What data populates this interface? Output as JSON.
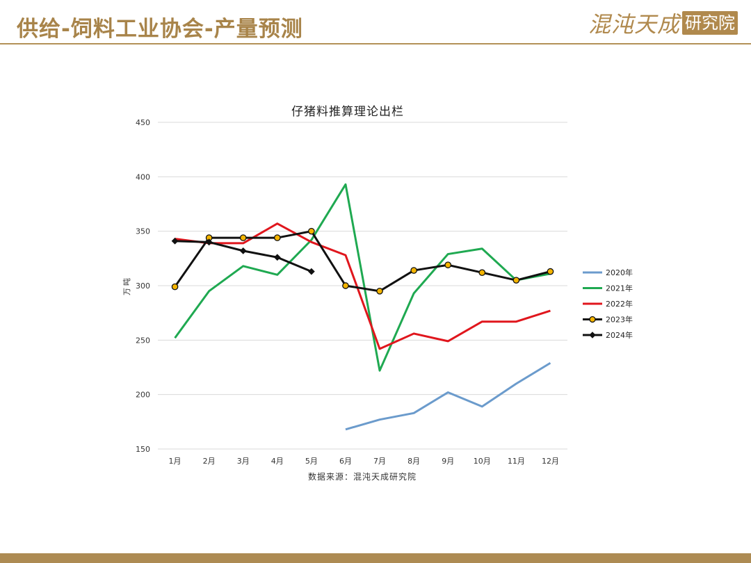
{
  "header": {
    "title": "供给-饲料工业协会-产量预测",
    "logo_script": "混沌天成",
    "logo_seal": "研究院"
  },
  "colors": {
    "accent": "#a8844a",
    "gridline": "#d9d9d9"
  },
  "chart_data": {
    "type": "line",
    "title": "仔猪料推算理论出栏",
    "ylabel": "万吨",
    "xlabel": "",
    "source": "数据来源：混沌天成研究院",
    "categories": [
      "1月",
      "2月",
      "3月",
      "4月",
      "5月",
      "6月",
      "7月",
      "8月",
      "9月",
      "10月",
      "11月",
      "12月"
    ],
    "ylim": [
      150,
      450
    ],
    "yticks": [
      150,
      200,
      250,
      300,
      350,
      400,
      450
    ],
    "grid": true,
    "legend_position": "right",
    "series": [
      {
        "name": "2020年",
        "color": "#6b9bcc",
        "marker": "none",
        "values": [
          null,
          null,
          null,
          null,
          null,
          168,
          177,
          183,
          202,
          189,
          210,
          229
        ]
      },
      {
        "name": "2021年",
        "color": "#1fa951",
        "marker": "none",
        "values": [
          252,
          295,
          318,
          310,
          342,
          393,
          222,
          293,
          329,
          334,
          305,
          311
        ]
      },
      {
        "name": "2022年",
        "color": "#e0161d",
        "marker": "none",
        "values": [
          343,
          339,
          339,
          357,
          340,
          328,
          242,
          256,
          249,
          267,
          267,
          277
        ]
      },
      {
        "name": "2023年",
        "color": "#111111",
        "marker": "circle",
        "marker_fill": "#f4b400",
        "values": [
          299,
          344,
          344,
          344,
          350,
          300,
          295,
          314,
          319,
          312,
          305,
          313
        ]
      },
      {
        "name": "2024年",
        "color": "#111111",
        "marker": "diamond",
        "marker_fill": "#111111",
        "values": [
          341,
          340,
          332,
          326,
          313,
          null,
          null,
          null,
          null,
          null,
          null,
          null
        ]
      }
    ]
  }
}
